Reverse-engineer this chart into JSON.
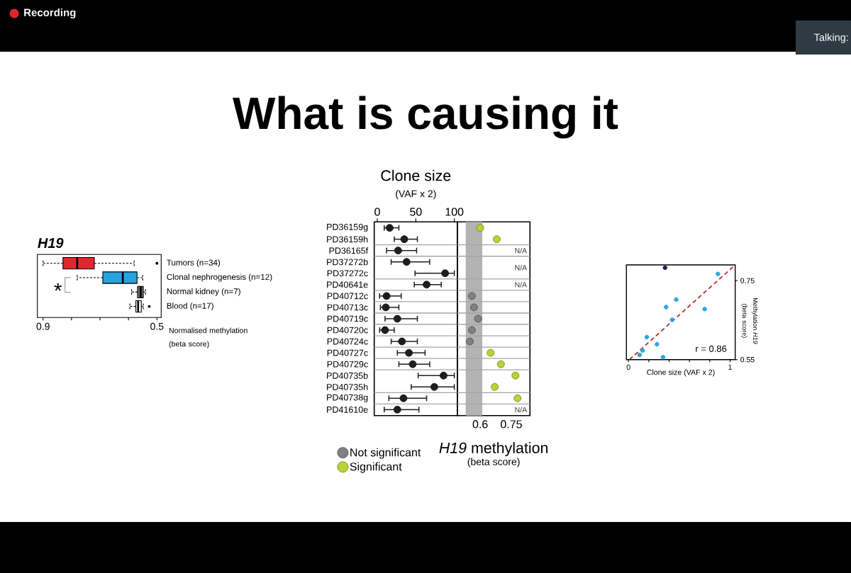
{
  "chart_data": [
    {
      "type": "other",
      "title": "What is causing it",
      "annotations": [
        "Recording",
        "Talking:"
      ]
    },
    {
      "type": "box",
      "title": "H19",
      "xlabel": "Normalised methylation (beta score)",
      "orientation": "horizontal",
      "categories": [
        "Tumors (n=34)",
        "Clonal nephrogenesis (n=12)",
        "Normal kidney (n=7)",
        "Blood (n=17)"
      ],
      "colors": [
        "#e3262d",
        "#27a3dd",
        "#6e6e6e",
        "#ffffff"
      ],
      "boxes": [
        {
          "low": 0.58,
          "q1": 0.72,
          "median": 0.78,
          "q3": 0.83,
          "high": 0.9,
          "outliers": [
            0.5
          ]
        },
        {
          "low": 0.55,
          "q1": 0.57,
          "median": 0.62,
          "q3": 0.69,
          "high": 0.78
        },
        {
          "low": 0.54,
          "q1": 0.548,
          "median": 0.557,
          "q3": 0.568,
          "high": 0.589
        },
        {
          "low": 0.548,
          "q1": 0.555,
          "median": 0.566,
          "q3": 0.574,
          "high": 0.595,
          "outliers": [
            0.527
          ]
        }
      ],
      "xlim": [
        0.92,
        0.485
      ],
      "xticks": [
        0.9,
        {
          "value": 0.8,
          "label": null
        },
        {
          "value": 0.7,
          "label": null
        },
        {
          "value": 0.6,
          "label": null
        },
        0.5
      ],
      "line_style": "dashed",
      "annotations": [
        "*"
      ]
    },
    {
      "type": "scatter",
      "title": "Clone size",
      "subtitle": "(VAF x 2)",
      "orientation": "horizontal",
      "categories": [
        "PD36159g",
        "PD36159h",
        "PD36165f",
        "PD37272b",
        "PD37272c",
        "PD40641e",
        "PD40712c",
        "PD40713c",
        "PD40719c",
        "PD40720c",
        "PD40724c",
        "PD40727c",
        "PD40729c",
        "PD40735b",
        "PD40735h",
        "PD40738g",
        "PD41610e"
      ],
      "color": "#1e1e1e",
      "values": [
        16,
        35,
        27,
        38,
        88,
        64,
        12,
        11,
        26,
        10,
        32,
        41,
        46,
        86,
        74,
        34,
        26
      ],
      "errors": [
        [
          9,
          28
        ],
        [
          22,
          52
        ],
        [
          12,
          51
        ],
        [
          18,
          68
        ],
        [
          49,
          100
        ],
        [
          48,
          83
        ],
        [
          3,
          31
        ],
        [
          4,
          28
        ],
        [
          10,
          52
        ],
        [
          3,
          22
        ],
        [
          18,
          52
        ],
        [
          26,
          62
        ],
        [
          28,
          68
        ],
        [
          53,
          100
        ],
        [
          44,
          100
        ],
        [
          15,
          64
        ],
        [
          9,
          54
        ]
      ],
      "xlim": [
        -4,
        104
      ],
      "xticks": [
        0,
        50,
        100
      ],
      "marker": "circle"
    },
    {
      "type": "scatter",
      "xlabel": "*H19* methylation",
      "orientation": "horizontal",
      "categories": [
        null,
        null,
        null,
        null,
        null,
        null,
        null,
        null,
        null,
        null,
        null,
        null,
        null,
        null,
        null,
        null,
        null
      ],
      "series": [
        {
          "name": "Not significant",
          "color": "#808080",
          "values": [
            null,
            null,
            null,
            null,
            null,
            null,
            0.56,
            0.57,
            0.59,
            0.56,
            0.55,
            null,
            null,
            null,
            null,
            null,
            null
          ]
        },
        {
          "name": "Significant",
          "color": "#b8d432",
          "values": [
            0.6,
            0.68,
            null,
            null,
            null,
            null,
            null,
            null,
            null,
            null,
            null,
            0.65,
            0.7,
            0.77,
            0.67,
            0.78,
            null
          ]
        }
      ],
      "xlim": [
        0.49,
        0.84
      ],
      "xticks": [
        0.6,
        0.75
      ],
      "legend": "bottom left",
      "marker": "circle",
      "bands": [
        {
          "axis": "x",
          "from": 0.53,
          "to": 0.61,
          "color": "#b3b3b3"
        }
      ],
      "annotations": [
        "(beta score)",
        "N/A",
        "N/A",
        "N/A",
        "N/A"
      ]
    },
    {
      "type": "scatter",
      "xlabel": "Clone size (VAF x 2)",
      "ylabel": "Methylation *H19* (beta score)",
      "series": [
        {
          "color": "#29a9e0",
          "x": [
            0.88,
            0.47,
            0.37,
            0.75,
            0.43,
            0.18,
            0.28,
            0.14,
            0.11,
            0.34
          ],
          "values": [
            0.767,
            0.702,
            0.683,
            0.678,
            0.651,
            0.607,
            0.589,
            0.573,
            0.562,
            0.556
          ]
        },
        {
          "color": "#1b2352",
          "x": [
            0.36
          ],
          "values": [
            0.783
          ]
        },
        {
          "type": "line",
          "color": "#b3262b",
          "line_style": "dashed",
          "marker": "none",
          "x": [
            0.01,
            1.05
          ],
          "values": [
            0.55,
            0.79
          ]
        }
      ],
      "xlim": [
        -0.02,
        1.05
      ],
      "xticks": [
        0,
        {
          "value": 0.2,
          "label": null
        },
        {
          "value": 0.4,
          "label": null
        },
        {
          "value": 0.6,
          "label": null
        },
        {
          "value": 0.8,
          "label": null
        },
        1
      ],
      "ylim": [
        0.55,
        0.79
      ],
      "yticks": [
        0.55,
        0.75
      ],
      "marker": "circle",
      "annotations": [
        "r = 0.86"
      ]
    }
  ]
}
